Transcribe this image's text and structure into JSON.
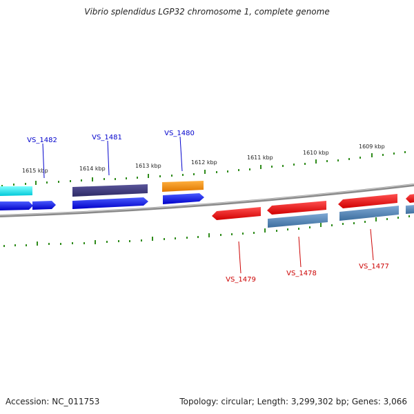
{
  "title": "Vibrio splendidus LGP32 chromosome 1, complete genome",
  "footer": {
    "accession": "Accession: NC_011753",
    "summary": "Topology: circular; Length: 3,299,302 bp; Genes: 3,066"
  },
  "colors": {
    "backbone": "#8a8a8a",
    "ticks": "#2e8b1a",
    "tick_label": "#222222",
    "plus_label": "#0000cc",
    "minus_label": "#cc0000"
  },
  "scale": {
    "unit": "kbp",
    "labels": [
      "1615 kbp",
      "1614 kbp",
      "1613 kbp",
      "1612 kbp",
      "1611 kbp",
      "1610 kbp",
      "1609 kbp"
    ]
  },
  "gene_labels": {
    "plus": [
      "VS_1482",
      "VS_1481",
      "VS_1480"
    ],
    "minus": [
      "VS_1479",
      "VS_1478",
      "VS_1477"
    ]
  }
}
